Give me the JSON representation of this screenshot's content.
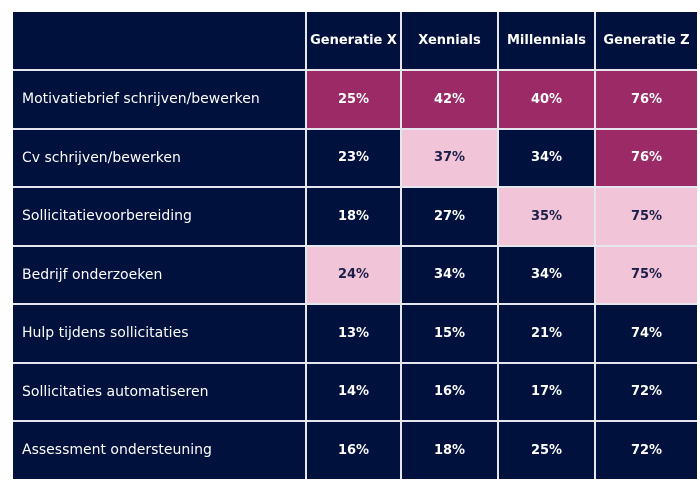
{
  "chart_data": {
    "type": "table",
    "columns": [
      "",
      "Generatie X",
      "Xennials",
      "Millennials",
      "Generatie Z"
    ],
    "colors": {
      "default": "#00113d",
      "high": "#9c2a67",
      "medium": "#f2c4d8"
    },
    "rows": [
      {
        "label": "Motivatiebrief schrijven/bewerken",
        "values": [
          "25%",
          "42%",
          "40%",
          "76%"
        ],
        "shade": [
          "high",
          "high",
          "high",
          "high"
        ]
      },
      {
        "label": "Cv schrijven/bewerken",
        "values": [
          "23%",
          "37%",
          "34%",
          "76%"
        ],
        "shade": [
          "default",
          "medium",
          "default",
          "high"
        ]
      },
      {
        "label": "Sollicitatievoorbereiding",
        "values": [
          "18%",
          "27%",
          "35%",
          "75%"
        ],
        "shade": [
          "default",
          "default",
          "medium",
          "medium"
        ]
      },
      {
        "label": "Bedrijf onderzoeken",
        "values": [
          "24%",
          "34%",
          "34%",
          "75%"
        ],
        "shade": [
          "medium",
          "default",
          "default",
          "medium"
        ]
      },
      {
        "label": "Hulp tijdens sollicitaties",
        "values": [
          "13%",
          "15%",
          "21%",
          "74%"
        ],
        "shade": [
          "default",
          "default",
          "default",
          "default"
        ]
      },
      {
        "label": "Sollicitaties automatiseren",
        "values": [
          "14%",
          "16%",
          "17%",
          "72%"
        ],
        "shade": [
          "default",
          "default",
          "default",
          "default"
        ]
      },
      {
        "label": "Assessment ondersteuning",
        "values": [
          "16%",
          "18%",
          "25%",
          "72%"
        ],
        "shade": [
          "default",
          "default",
          "default",
          "default"
        ]
      }
    ]
  }
}
